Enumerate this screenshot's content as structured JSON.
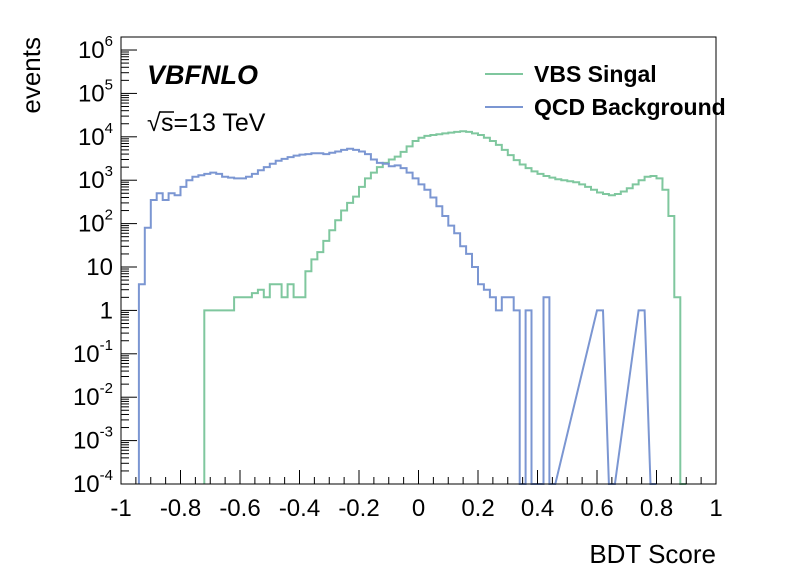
{
  "chart_data": {
    "type": "step-histogram",
    "xlabel": "BDT Score",
    "ylabel": "events",
    "xlim": [
      -1,
      1
    ],
    "ylim_log10": [
      -4,
      6.3
    ],
    "xticks": [
      "-1",
      "-0.8",
      "-0.6",
      "-0.4",
      "-0.2",
      "0",
      "0.2",
      "0.4",
      "0.6",
      "0.8",
      "1"
    ],
    "yticks": [
      {
        "base": "10",
        "exp": "-4",
        "v": -4
      },
      {
        "base": "10",
        "exp": "-3",
        "v": -3
      },
      {
        "base": "10",
        "exp": "-2",
        "v": -2
      },
      {
        "base": "10",
        "exp": "-1",
        "v": -1
      },
      {
        "base": "1",
        "exp": "",
        "v": 0
      },
      {
        "base": "10",
        "exp": "",
        "v": 1
      },
      {
        "base": "10",
        "exp": "2",
        "v": 2
      },
      {
        "base": "10",
        "exp": "3",
        "v": 3
      },
      {
        "base": "10",
        "exp": "4",
        "v": 4
      },
      {
        "base": "10",
        "exp": "5",
        "v": 5
      },
      {
        "base": "10",
        "exp": "6",
        "v": 6
      }
    ],
    "bin_width": 0.02,
    "series": [
      {
        "name": "VBS Singal",
        "color": "#7fc79e",
        "points": [
          [
            -0.72,
            1
          ],
          [
            -0.64,
            1
          ],
          [
            -0.62,
            2
          ],
          [
            -0.58,
            2
          ],
          [
            -0.56,
            2.5
          ],
          [
            -0.54,
            3
          ],
          [
            -0.52,
            2
          ],
          [
            -0.5,
            4
          ],
          [
            -0.48,
            4
          ],
          [
            -0.46,
            2
          ],
          [
            -0.44,
            4
          ],
          [
            -0.42,
            2
          ],
          [
            -0.4,
            2
          ],
          [
            -0.38,
            8
          ],
          [
            -0.36,
            15
          ],
          [
            -0.34,
            22
          ],
          [
            -0.32,
            40
          ],
          [
            -0.3,
            70
          ],
          [
            -0.28,
            120
          ],
          [
            -0.26,
            200
          ],
          [
            -0.24,
            300
          ],
          [
            -0.22,
            420
          ],
          [
            -0.2,
            700
          ],
          [
            -0.18,
            1100
          ],
          [
            -0.16,
            1500
          ],
          [
            -0.14,
            2000
          ],
          [
            -0.12,
            2500
          ],
          [
            -0.1,
            3000
          ],
          [
            -0.08,
            3500
          ],
          [
            -0.06,
            4500
          ],
          [
            -0.04,
            6000
          ],
          [
            -0.02,
            8000
          ],
          [
            0.0,
            9500
          ],
          [
            0.02,
            10500
          ],
          [
            0.04,
            11000
          ],
          [
            0.06,
            11500
          ],
          [
            0.08,
            12000
          ],
          [
            0.1,
            12500
          ],
          [
            0.12,
            13000
          ],
          [
            0.14,
            13500
          ],
          [
            0.16,
            13000
          ],
          [
            0.18,
            12000
          ],
          [
            0.2,
            11000
          ],
          [
            0.22,
            9500
          ],
          [
            0.24,
            8000
          ],
          [
            0.26,
            6500
          ],
          [
            0.28,
            5000
          ],
          [
            0.3,
            3800
          ],
          [
            0.32,
            2900
          ],
          [
            0.34,
            2300
          ],
          [
            0.36,
            1900
          ],
          [
            0.38,
            1600
          ],
          [
            0.4,
            1400
          ],
          [
            0.42,
            1250
          ],
          [
            0.44,
            1150
          ],
          [
            0.46,
            1050
          ],
          [
            0.48,
            1000
          ],
          [
            0.5,
            950
          ],
          [
            0.52,
            900
          ],
          [
            0.54,
            800
          ],
          [
            0.56,
            700
          ],
          [
            0.58,
            600
          ],
          [
            0.6,
            520
          ],
          [
            0.62,
            480
          ],
          [
            0.64,
            450
          ],
          [
            0.66,
            480
          ],
          [
            0.68,
            550
          ],
          [
            0.7,
            650
          ],
          [
            0.72,
            800
          ],
          [
            0.74,
            1000
          ],
          [
            0.76,
            1200
          ],
          [
            0.78,
            1250
          ],
          [
            0.8,
            1100
          ],
          [
            0.82,
            600
          ],
          [
            0.84,
            150
          ],
          [
            0.86,
            2
          ],
          [
            0.88,
            0.0001
          ]
        ]
      },
      {
        "name": "QCD Background",
        "color": "#7b96d2",
        "points": [
          [
            -0.94,
            4
          ],
          [
            -0.92,
            80
          ],
          [
            -0.9,
            350
          ],
          [
            -0.88,
            500
          ],
          [
            -0.86,
            350
          ],
          [
            -0.84,
            500
          ],
          [
            -0.82,
            450
          ],
          [
            -0.8,
            700
          ],
          [
            -0.78,
            1000
          ],
          [
            -0.76,
            1200
          ],
          [
            -0.74,
            1300
          ],
          [
            -0.72,
            1400
          ],
          [
            -0.7,
            1500
          ],
          [
            -0.68,
            1400
          ],
          [
            -0.66,
            1200
          ],
          [
            -0.64,
            1150
          ],
          [
            -0.62,
            1100
          ],
          [
            -0.6,
            1100
          ],
          [
            -0.58,
            1200
          ],
          [
            -0.56,
            1400
          ],
          [
            -0.54,
            1700
          ],
          [
            -0.52,
            2000
          ],
          [
            -0.5,
            2400
          ],
          [
            -0.48,
            2800
          ],
          [
            -0.46,
            3100
          ],
          [
            -0.44,
            3400
          ],
          [
            -0.42,
            3700
          ],
          [
            -0.4,
            3900
          ],
          [
            -0.38,
            4000
          ],
          [
            -0.36,
            4200
          ],
          [
            -0.34,
            4200
          ],
          [
            -0.32,
            4000
          ],
          [
            -0.3,
            4300
          ],
          [
            -0.28,
            4600
          ],
          [
            -0.26,
            5000
          ],
          [
            -0.24,
            5300
          ],
          [
            -0.22,
            5000
          ],
          [
            -0.2,
            4600
          ],
          [
            -0.18,
            4000
          ],
          [
            -0.16,
            3000
          ],
          [
            -0.14,
            2500
          ],
          [
            -0.12,
            2400
          ],
          [
            -0.1,
            2100
          ],
          [
            -0.08,
            2200
          ],
          [
            -0.06,
            1900
          ],
          [
            -0.04,
            1500
          ],
          [
            -0.02,
            1100
          ],
          [
            0.0,
            800
          ],
          [
            0.02,
            600
          ],
          [
            0.04,
            400
          ],
          [
            0.06,
            250
          ],
          [
            0.08,
            150
          ],
          [
            0.1,
            90
          ],
          [
            0.12,
            60
          ],
          [
            0.14,
            30
          ],
          [
            0.16,
            20
          ],
          [
            0.18,
            10
          ],
          [
            0.2,
            4
          ],
          [
            0.22,
            3
          ],
          [
            0.24,
            2
          ],
          [
            0.26,
            1
          ],
          [
            0.28,
            2
          ],
          [
            0.3,
            2
          ],
          [
            0.32,
            1
          ],
          [
            0.34,
            0.0001
          ],
          [
            0.36,
            1
          ],
          [
            0.38,
            0.0001
          ],
          [
            0.4,
            0.0001
          ],
          [
            0.42,
            2
          ],
          [
            0.44,
            0.0001
          ],
          [
            0.6,
            1
          ],
          [
            0.64,
            0.0001
          ],
          [
            0.74,
            1
          ],
          [
            0.78,
            0.0001
          ]
        ]
      }
    ],
    "annotations": {
      "brand": "VBFNLO",
      "energy": "s=13 TeV",
      "sqrt_symbol": "√"
    },
    "legend_position": "top-right"
  }
}
